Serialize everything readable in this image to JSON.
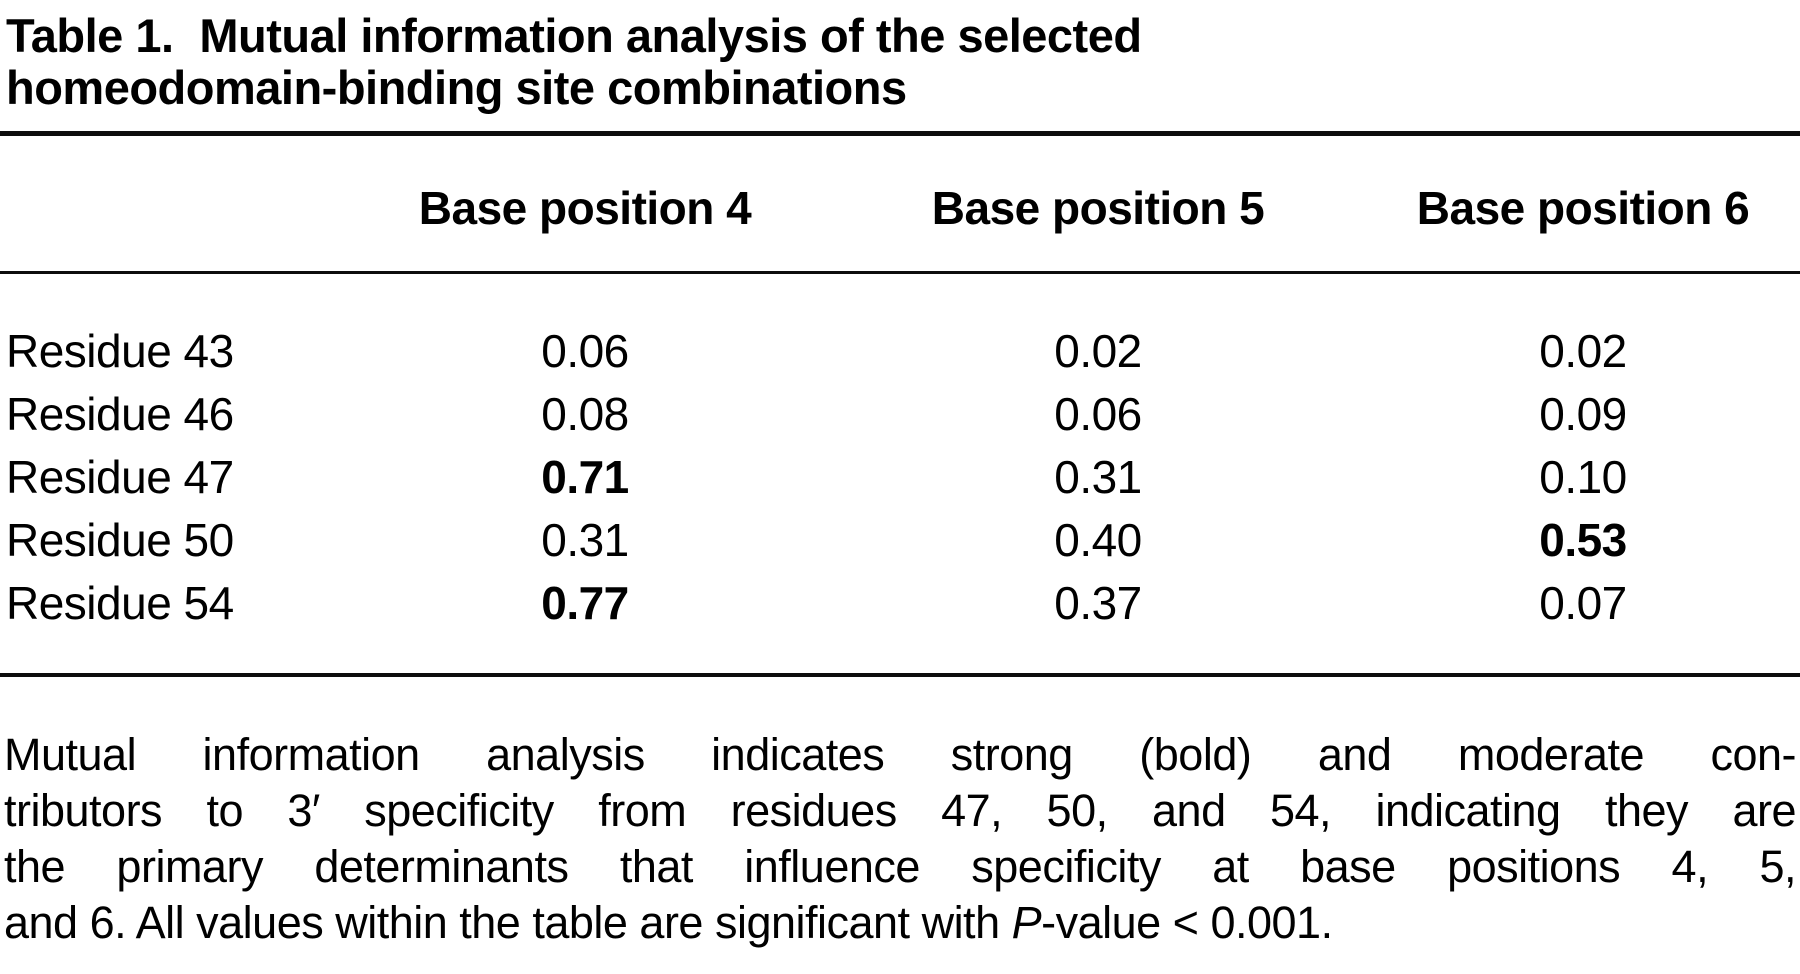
{
  "page": {
    "table_label": "Table 1.",
    "table_title": "Mutual information analysis of the selected homeodomain-binding site combinations"
  },
  "table": {
    "column_headers": [
      "Base position 4",
      "Base position 5",
      "Base position 6"
    ],
    "rows": [
      {
        "label": "Residue 43",
        "values": [
          "0.06",
          "0.02",
          "0.02"
        ],
        "bold": [
          false,
          false,
          false
        ]
      },
      {
        "label": "Residue 46",
        "values": [
          "0.08",
          "0.06",
          "0.09"
        ],
        "bold": [
          false,
          false,
          false
        ]
      },
      {
        "label": "Residue 47",
        "values": [
          "0.71",
          "0.31",
          "0.10"
        ],
        "bold": [
          true,
          false,
          false
        ]
      },
      {
        "label": "Residue 50",
        "values": [
          "0.31",
          "0.40",
          "0.53"
        ],
        "bold": [
          false,
          false,
          true
        ]
      },
      {
        "label": "Residue 54",
        "values": [
          "0.77",
          "0.37",
          "0.07"
        ],
        "bold": [
          true,
          false,
          false
        ]
      }
    ]
  },
  "footnote": {
    "line1": "Mutual information analysis indicates strong (bold) and moderate con-",
    "line2": "tributors to 3′ specificity from residues 47, 50, and 54, indicating they are",
    "line3": "the primary determinants that influence specificity at base positions 4, 5,",
    "line4_prefix": "and 6. All values within the table are significant with ",
    "line4_italic_term": "P",
    "line4_suffix": "-value < 0.001."
  },
  "chart_data": {
    "type": "table",
    "title": "Table 1. Mutual information analysis of the selected homeodomain-binding site combinations",
    "columns": [
      "",
      "Base position 4",
      "Base position 5",
      "Base position 6"
    ],
    "rows": [
      [
        "Residue 43",
        0.06,
        0.02,
        0.02
      ],
      [
        "Residue 46",
        0.08,
        0.06,
        0.09
      ],
      [
        "Residue 47",
        0.71,
        0.31,
        0.1
      ],
      [
        "Residue 50",
        0.31,
        0.4,
        0.53
      ],
      [
        "Residue 54",
        0.77,
        0.37,
        0.07
      ]
    ],
    "bold_values": [
      {
        "row": "Residue 47",
        "column": "Base position 4",
        "value": 0.71
      },
      {
        "row": "Residue 50",
        "column": "Base position 6",
        "value": 0.53
      },
      {
        "row": "Residue 54",
        "column": "Base position 4",
        "value": 0.77
      }
    ],
    "footnote": "Mutual information analysis indicates strong (bold) and moderate contributors to 3′ specificity from residues 47, 50, and 54, indicating they are the primary determinants that influence specificity at base positions 4, 5, and 6. All values within the table are significant with P-value < 0.001."
  }
}
